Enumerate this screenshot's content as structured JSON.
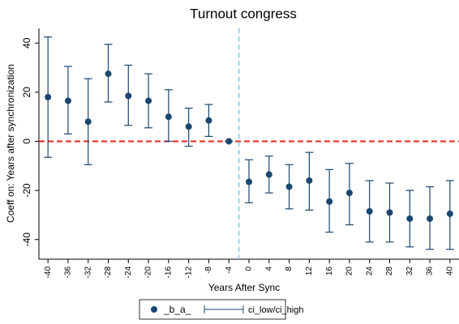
{
  "chart_data": {
    "type": "errorbar",
    "title": "Turnout congress",
    "x_label": "Years After Sync",
    "y_label": "Coeff on: Years after synchronization",
    "x": [
      -40,
      -36,
      -32,
      -28,
      -24,
      -20,
      -16,
      -12,
      -8,
      -4,
      0,
      4,
      8,
      12,
      16,
      20,
      24,
      28,
      32,
      36,
      40
    ],
    "series": [
      {
        "name": "_b_a_",
        "color": "#1a476f",
        "values": [
          18,
          16.5,
          8,
          27.5,
          18.5,
          16.5,
          10,
          6,
          8.5,
          0,
          -16.5,
          -13.5,
          -18.5,
          -16,
          -24.5,
          -21,
          -28.5,
          -29,
          -31.5,
          -31.5,
          -29.5
        ]
      },
      {
        "name": "ci_low/ci_high",
        "color": "#1a476f",
        "low": [
          -6.5,
          3,
          -9.5,
          16,
          6.5,
          5.5,
          0,
          -2,
          2,
          0,
          -25,
          -21,
          -27.5,
          -28,
          -37,
          -34,
          -41,
          -41,
          -43,
          -44,
          -44
        ],
        "high": [
          42.5,
          30.5,
          25.5,
          39.5,
          31,
          27.5,
          21,
          13.5,
          15,
          0,
          -7.5,
          -6,
          -9.5,
          -4.5,
          -11.5,
          -9,
          -16,
          -17,
          -20,
          -18.5,
          -16
        ]
      }
    ],
    "xlim": [
      -41.8,
      41.8
    ],
    "ylim": [
      -48,
      46
    ],
    "xticks": [
      -40,
      -36,
      -32,
      -28,
      -24,
      -20,
      -16,
      -12,
      -8,
      -4,
      0,
      4,
      8,
      12,
      16,
      20,
      24,
      28,
      32,
      36,
      40
    ],
    "yticks": [
      -40,
      -20,
      0,
      20,
      40
    ],
    "grid": false,
    "hline": {
      "value": 0,
      "color": "#e8251f"
    },
    "vline": {
      "value": -2,
      "color": "#7ec8e3"
    },
    "legend": "bottom"
  }
}
